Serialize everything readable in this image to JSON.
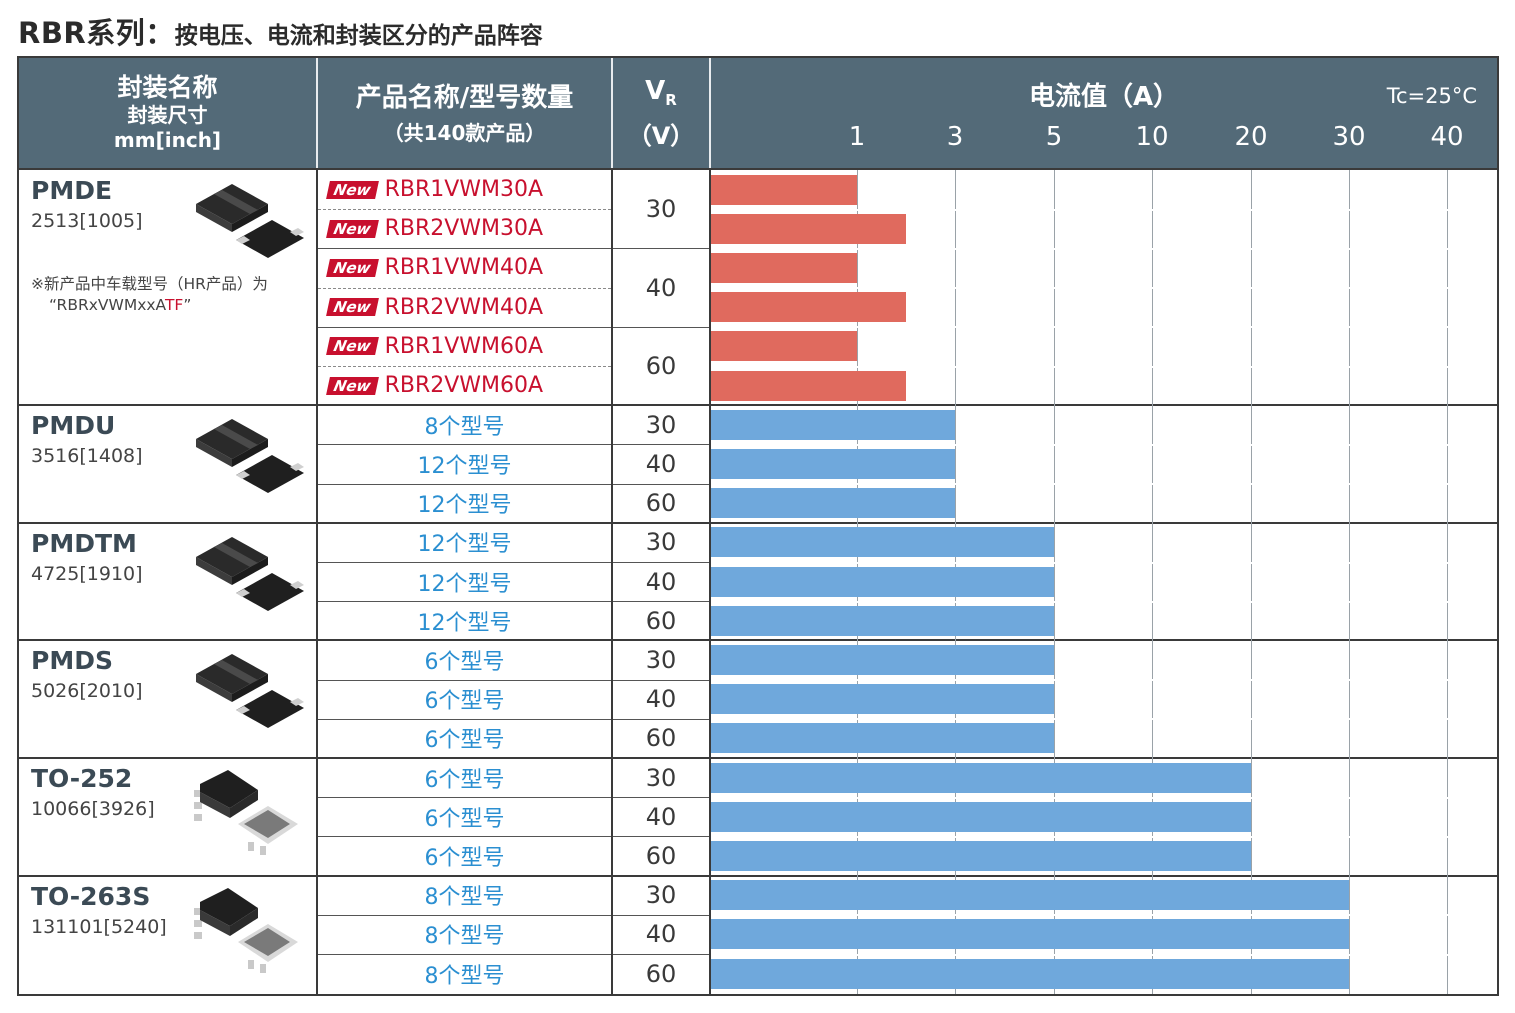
{
  "title": {
    "main": "RBR系列：",
    "sub": "按电压、电流和封装区分的产品阵容"
  },
  "header": {
    "package": [
      "封装名称",
      "封装尺寸",
      "mm[inch]"
    ],
    "product": [
      "产品名称/型号数量",
      "（共140款产品）"
    ],
    "vr_symbol": "V",
    "vr_sub": "R",
    "vr_unit": "（V）",
    "current": "电流值（A）",
    "tc": "Tc=25°C"
  },
  "new_badge": "New",
  "colors": {
    "header_bg": "#536a78",
    "new_bar": "#e06a5e",
    "std_bar": "#6fa8dc",
    "new_text": "#c8102e",
    "count_text": "#2b8fd1"
  },
  "chart_data": {
    "type": "bar",
    "orientation": "horizontal",
    "value_label": "电流值（A）",
    "axis_ticks": [
      "1",
      "3",
      "5",
      "10",
      "20",
      "30",
      "40"
    ],
    "note": "Tc=25°C",
    "groups": [
      {
        "package": "PMDE",
        "size": "2513[1005]",
        "note": [
          "※新产品中车载型号（HR产品）为",
          "“RBRxVWMxxA",
          "TF",
          "”"
        ],
        "is_new": true,
        "rows": [
          {
            "product": "RBR1VWM30A",
            "vr": 30,
            "current": 1
          },
          {
            "product": "RBR2VWM30A",
            "vr": 30,
            "current": 2
          },
          {
            "product": "RBR1VWM40A",
            "vr": 40,
            "current": 1
          },
          {
            "product": "RBR2VWM40A",
            "vr": 40,
            "current": 2
          },
          {
            "product": "RBR1VWM60A",
            "vr": 60,
            "current": 1
          },
          {
            "product": "RBR2VWM60A",
            "vr": 60,
            "current": 2
          }
        ]
      },
      {
        "package": "PMDU",
        "size": "3516[1408]",
        "is_new": false,
        "rows": [
          {
            "product": "8个型号",
            "vr": 30,
            "current": 3
          },
          {
            "product": "12个型号",
            "vr": 40,
            "current": 3
          },
          {
            "product": "12个型号",
            "vr": 60,
            "current": 3
          }
        ]
      },
      {
        "package": "PMDTM",
        "size": "4725[1910]",
        "is_new": false,
        "rows": [
          {
            "product": "12个型号",
            "vr": 30,
            "current": 5
          },
          {
            "product": "12个型号",
            "vr": 40,
            "current": 5
          },
          {
            "product": "12个型号",
            "vr": 60,
            "current": 5
          }
        ]
      },
      {
        "package": "PMDS",
        "size": "5026[2010]",
        "is_new": false,
        "rows": [
          {
            "product": "6个型号",
            "vr": 30,
            "current": 5
          },
          {
            "product": "6个型号",
            "vr": 40,
            "current": 5
          },
          {
            "product": "6个型号",
            "vr": 60,
            "current": 5
          }
        ]
      },
      {
        "package": "TO-252",
        "size": "10066[3926]",
        "is_new": false,
        "rows": [
          {
            "product": "6个型号",
            "vr": 30,
            "current": 20
          },
          {
            "product": "6个型号",
            "vr": 40,
            "current": 20
          },
          {
            "product": "6个型号",
            "vr": 60,
            "current": 20
          }
        ]
      },
      {
        "package": "TO-263S",
        "size": "131101[5240]",
        "is_new": false,
        "rows": [
          {
            "product": "8个型号",
            "vr": 30,
            "current": 30
          },
          {
            "product": "8个型号",
            "vr": 40,
            "current": 30
          },
          {
            "product": "8个型号",
            "vr": 60,
            "current": 30
          }
        ]
      }
    ]
  }
}
